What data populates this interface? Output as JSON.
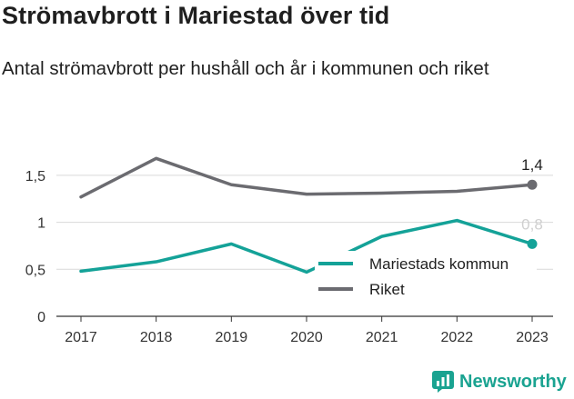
{
  "title": "Strömavbrott i Mariestad över tid",
  "subtitle": "Antal strömavbrott per hushåll och år i kommunen och riket",
  "brand": {
    "name": "Newsworthy",
    "icon": "newsworthy-logo-icon",
    "color": "#1aa391"
  },
  "chart_data": {
    "type": "line",
    "title": "Strömavbrott i Mariestad över tid",
    "subtitle": "Antal strömavbrott per hushåll och år i kommunen och riket",
    "x": [
      "2017",
      "2018",
      "2019",
      "2020",
      "2021",
      "2022",
      "2023"
    ],
    "y_ticks": [
      "0",
      "0,5",
      "1",
      "1,5"
    ],
    "ylim": [
      0,
      1.8
    ],
    "grid": true,
    "legend": "center-right",
    "series": [
      {
        "name": "Mariestads kommun",
        "color": "#14a298",
        "values": [
          0.48,
          0.58,
          0.77,
          0.47,
          0.85,
          1.02,
          0.77
        ],
        "end_label": "0,8"
      },
      {
        "name": "Riket",
        "color": "#6b6b70",
        "values": [
          1.27,
          1.68,
          1.4,
          1.3,
          1.31,
          1.33,
          1.4
        ],
        "end_label": "1,4"
      }
    ]
  }
}
